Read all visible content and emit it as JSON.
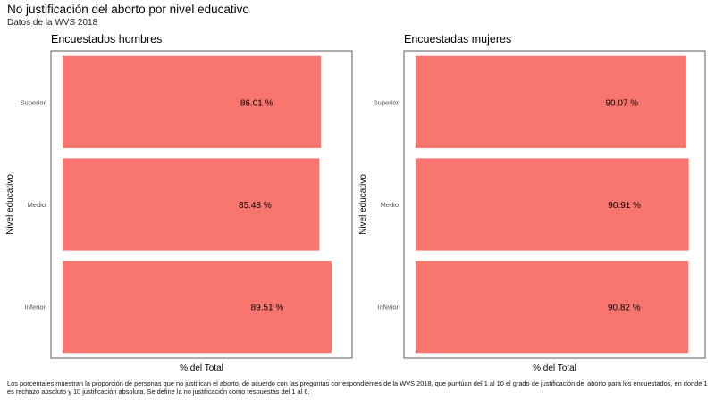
{
  "header": {
    "title": "No justificación del aborto por nivel educativo",
    "subtitle": "Datos de la WVS 2018"
  },
  "caption": "Los porcentajes muestran la proporción de personas que no justifican el aborto, de acuerdo con las preguntas correspondientes de la WVS 2018, que puntúan del 1 al 10 el grado de justificación del aborto para los encuestados, en donde 1 es rechazo absoluto y 10 justificación absoluta. Se define la no justificación como respuestas del 1 al 6.",
  "colors": {
    "bar": "#F8766D",
    "panel_border": "#333333"
  },
  "chart_data": [
    {
      "type": "bar",
      "orientation": "horizontal",
      "title": "Encuestados hombres",
      "categories": [
        "Superior",
        "Medio",
        "Inferior"
      ],
      "values": [
        86.01,
        85.48,
        89.51
      ],
      "labels": [
        "86.01 %",
        "85.48 %",
        "89.51 %"
      ],
      "xlabel": "% del Total",
      "ylabel": "Nivel educativo",
      "x_ticks_shown": false,
      "grid": false
    },
    {
      "type": "bar",
      "orientation": "horizontal",
      "title": "Encuestadas mujeres",
      "categories": [
        "Superior",
        "Medio",
        "Inferior"
      ],
      "values": [
        90.07,
        90.91,
        90.82
      ],
      "labels": [
        "90.07 %",
        "90.91 %",
        "90.82 %"
      ],
      "xlabel": "% del Total",
      "ylabel": "Nivel educativo",
      "x_ticks_shown": false,
      "grid": false
    }
  ]
}
